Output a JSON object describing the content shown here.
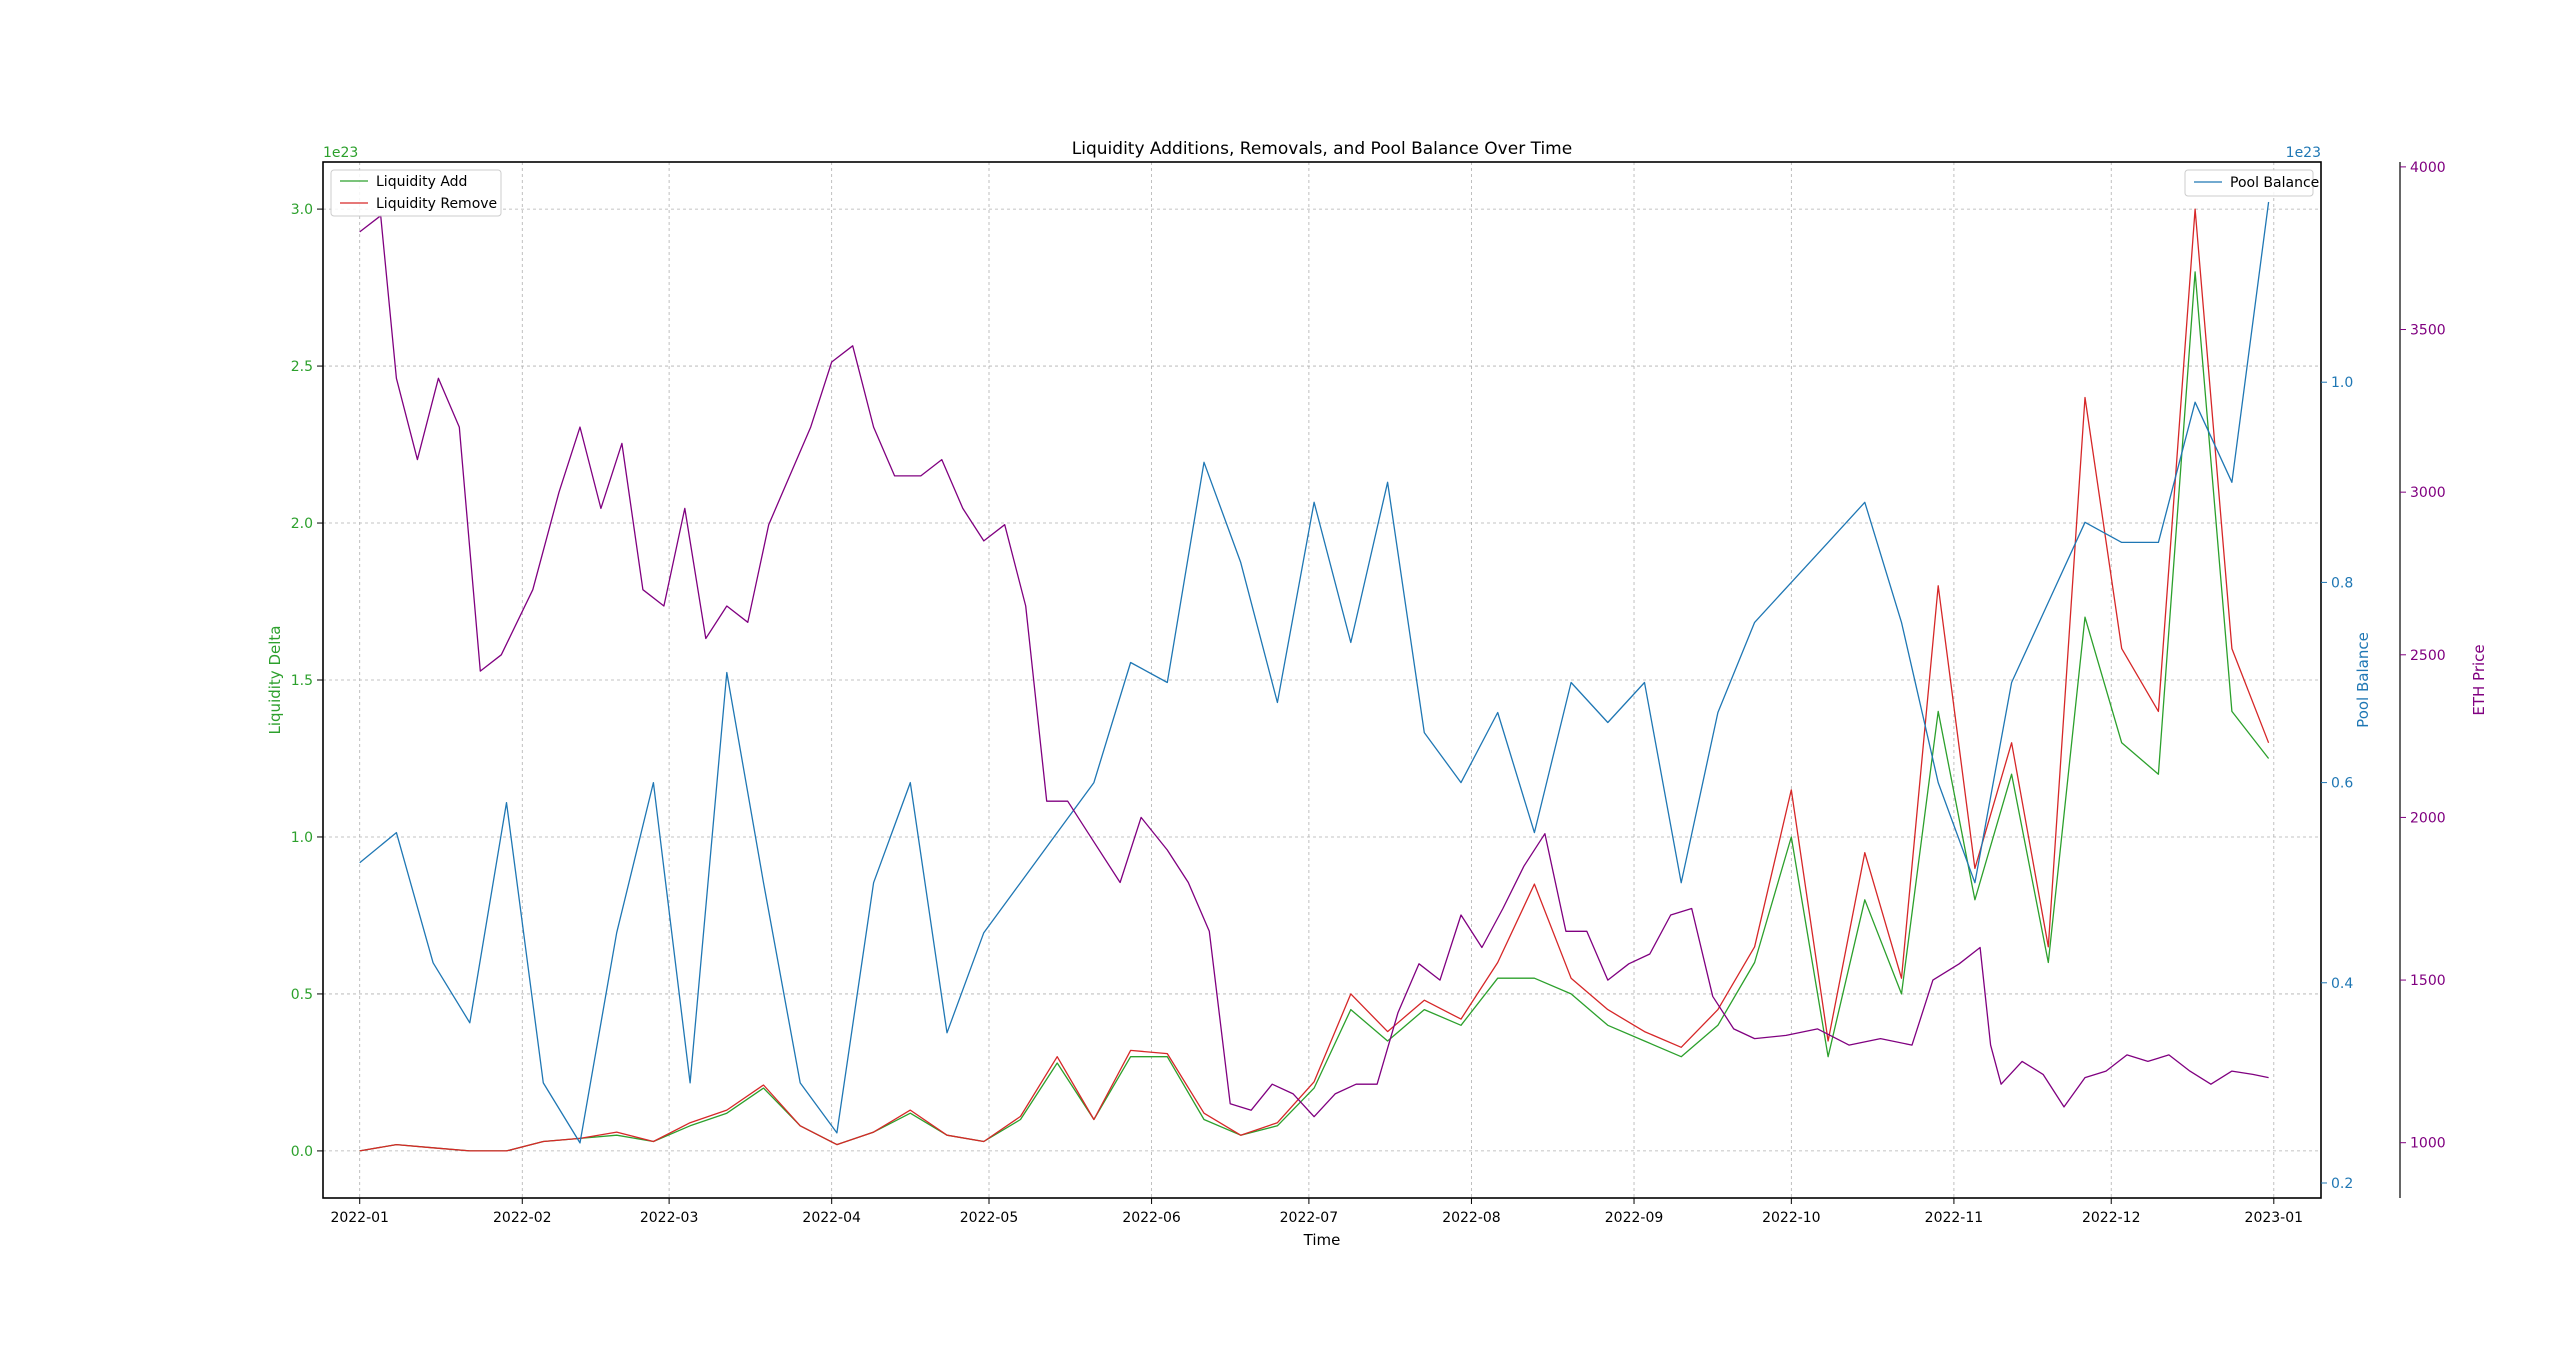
{
  "chart_data": {
    "type": "line",
    "title": "Liquidity Additions, Removals, and Pool Balance Over Time",
    "xlabel": "Time",
    "x_ticks": [
      "2022-01",
      "2022-02",
      "2022-03",
      "2022-04",
      "2022-05",
      "2022-06",
      "2022-07",
      "2022-08",
      "2022-09",
      "2022-10",
      "2022-11",
      "2022-12",
      "2023-01"
    ],
    "grid": true,
    "axes": {
      "left": {
        "label": "Liquidity Delta",
        "offset_text": "1e23",
        "ticks": [
          "0.0",
          "0.5",
          "1.0",
          "1.5",
          "2.0",
          "2.5",
          "3.0"
        ],
        "ylim": [
          -0.15,
          3.15
        ],
        "color": "#2ca02c"
      },
      "right1": {
        "label": "Pool Balance",
        "offset_text": "1e23",
        "ticks": [
          "0.2",
          "0.4",
          "0.6",
          "0.8",
          "1.0"
        ],
        "ylim": [
          0.185,
          1.22
        ],
        "color": "#1f77b4"
      },
      "right2": {
        "label": "ETH Price",
        "ticks": [
          "1000",
          "1500",
          "2000",
          "2500",
          "3000",
          "3500",
          "4000"
        ],
        "ylim": [
          830,
          4015
        ],
        "color": "#800080"
      }
    },
    "legends": {
      "upper-left": [
        "Liquidity Add",
        "Liquidity Remove"
      ],
      "upper-right": [
        "Pool Balance"
      ]
    },
    "series": [
      {
        "name": "Liquidity Add",
        "axis": "left",
        "color": "#2ca02c",
        "points": [
          [
            "2022-01-01",
            0.0
          ],
          [
            "2022-01-08",
            0.02
          ],
          [
            "2022-01-15",
            0.01
          ],
          [
            "2022-01-22",
            0.0
          ],
          [
            "2022-01-29",
            0.0
          ],
          [
            "2022-02-05",
            0.03
          ],
          [
            "2022-02-12",
            0.04
          ],
          [
            "2022-02-19",
            0.05
          ],
          [
            "2022-02-26",
            0.03
          ],
          [
            "2022-03-05",
            0.08
          ],
          [
            "2022-03-12",
            0.12
          ],
          [
            "2022-03-19",
            0.2
          ],
          [
            "2022-03-26",
            0.08
          ],
          [
            "2022-04-02",
            0.02
          ],
          [
            "2022-04-09",
            0.06
          ],
          [
            "2022-04-16",
            0.12
          ],
          [
            "2022-04-23",
            0.05
          ],
          [
            "2022-04-30",
            0.03
          ],
          [
            "2022-05-07",
            0.1
          ],
          [
            "2022-05-14",
            0.28
          ],
          [
            "2022-05-21",
            0.1
          ],
          [
            "2022-05-28",
            0.3
          ],
          [
            "2022-06-04",
            0.3
          ],
          [
            "2022-06-11",
            0.1
          ],
          [
            "2022-06-18",
            0.05
          ],
          [
            "2022-06-25",
            0.08
          ],
          [
            "2022-07-02",
            0.2
          ],
          [
            "2022-07-09",
            0.45
          ],
          [
            "2022-07-16",
            0.35
          ],
          [
            "2022-07-23",
            0.45
          ],
          [
            "2022-07-30",
            0.4
          ],
          [
            "2022-08-06",
            0.55
          ],
          [
            "2022-08-13",
            0.55
          ],
          [
            "2022-08-20",
            0.5
          ],
          [
            "2022-08-27",
            0.4
          ],
          [
            "2022-09-03",
            0.35
          ],
          [
            "2022-09-10",
            0.3
          ],
          [
            "2022-09-17",
            0.4
          ],
          [
            "2022-09-24",
            0.6
          ],
          [
            "2022-10-01",
            1.0
          ],
          [
            "2022-10-08",
            0.3
          ],
          [
            "2022-10-15",
            0.8
          ],
          [
            "2022-10-22",
            0.5
          ],
          [
            "2022-10-29",
            1.4
          ],
          [
            "2022-11-05",
            0.8
          ],
          [
            "2022-11-12",
            1.2
          ],
          [
            "2022-11-19",
            0.6
          ],
          [
            "2022-11-26",
            1.7
          ],
          [
            "2022-12-03",
            1.3
          ],
          [
            "2022-12-10",
            1.2
          ],
          [
            "2022-12-17",
            2.8
          ],
          [
            "2022-12-24",
            1.4
          ],
          [
            "2022-12-31",
            1.25
          ]
        ]
      },
      {
        "name": "Liquidity Remove",
        "axis": "left",
        "color": "#d62728",
        "points": [
          [
            "2022-01-01",
            0.0
          ],
          [
            "2022-01-08",
            0.02
          ],
          [
            "2022-01-15",
            0.01
          ],
          [
            "2022-01-22",
            0.0
          ],
          [
            "2022-01-29",
            0.0
          ],
          [
            "2022-02-05",
            0.03
          ],
          [
            "2022-02-12",
            0.04
          ],
          [
            "2022-02-19",
            0.06
          ],
          [
            "2022-02-26",
            0.03
          ],
          [
            "2022-03-05",
            0.09
          ],
          [
            "2022-03-12",
            0.13
          ],
          [
            "2022-03-19",
            0.21
          ],
          [
            "2022-03-26",
            0.08
          ],
          [
            "2022-04-02",
            0.02
          ],
          [
            "2022-04-09",
            0.06
          ],
          [
            "2022-04-16",
            0.13
          ],
          [
            "2022-04-23",
            0.05
          ],
          [
            "2022-04-30",
            0.03
          ],
          [
            "2022-05-07",
            0.11
          ],
          [
            "2022-05-14",
            0.3
          ],
          [
            "2022-05-21",
            0.1
          ],
          [
            "2022-05-28",
            0.32
          ],
          [
            "2022-06-04",
            0.31
          ],
          [
            "2022-06-11",
            0.12
          ],
          [
            "2022-06-18",
            0.05
          ],
          [
            "2022-06-25",
            0.09
          ],
          [
            "2022-07-02",
            0.22
          ],
          [
            "2022-07-09",
            0.5
          ],
          [
            "2022-07-16",
            0.38
          ],
          [
            "2022-07-23",
            0.48
          ],
          [
            "2022-07-30",
            0.42
          ],
          [
            "2022-08-06",
            0.6
          ],
          [
            "2022-08-13",
            0.85
          ],
          [
            "2022-08-20",
            0.55
          ],
          [
            "2022-08-27",
            0.45
          ],
          [
            "2022-09-03",
            0.38
          ],
          [
            "2022-09-10",
            0.33
          ],
          [
            "2022-09-17",
            0.45
          ],
          [
            "2022-09-24",
            0.65
          ],
          [
            "2022-10-01",
            1.15
          ],
          [
            "2022-10-08",
            0.35
          ],
          [
            "2022-10-15",
            0.95
          ],
          [
            "2022-10-22",
            0.55
          ],
          [
            "2022-10-29",
            1.8
          ],
          [
            "2022-11-05",
            0.9
          ],
          [
            "2022-11-12",
            1.3
          ],
          [
            "2022-11-19",
            0.65
          ],
          [
            "2022-11-26",
            2.4
          ],
          [
            "2022-12-03",
            1.6
          ],
          [
            "2022-12-10",
            1.4
          ],
          [
            "2022-12-17",
            3.0
          ],
          [
            "2022-12-24",
            1.6
          ],
          [
            "2022-12-31",
            1.3
          ]
        ]
      },
      {
        "name": "Pool Balance",
        "axis": "right1",
        "color": "#1f77b4",
        "points": [
          [
            "2022-01-01",
            0.52
          ],
          [
            "2022-01-08",
            0.55
          ],
          [
            "2022-01-15",
            0.42
          ],
          [
            "2022-01-22",
            0.36
          ],
          [
            "2022-01-29",
            0.58
          ],
          [
            "2022-02-05",
            0.3
          ],
          [
            "2022-02-12",
            0.24
          ],
          [
            "2022-02-19",
            0.45
          ],
          [
            "2022-02-26",
            0.6
          ],
          [
            "2022-03-05",
            0.3
          ],
          [
            "2022-03-12",
            0.71
          ],
          [
            "2022-03-19",
            0.5
          ],
          [
            "2022-03-26",
            0.3
          ],
          [
            "2022-04-02",
            0.25
          ],
          [
            "2022-04-09",
            0.5
          ],
          [
            "2022-04-16",
            0.6
          ],
          [
            "2022-04-23",
            0.35
          ],
          [
            "2022-04-30",
            0.45
          ],
          [
            "2022-05-07",
            0.5
          ],
          [
            "2022-05-14",
            0.55
          ],
          [
            "2022-05-21",
            0.6
          ],
          [
            "2022-05-28",
            0.72
          ],
          [
            "2022-06-04",
            0.7
          ],
          [
            "2022-06-11",
            0.92
          ],
          [
            "2022-06-18",
            0.82
          ],
          [
            "2022-06-25",
            0.68
          ],
          [
            "2022-07-02",
            0.88
          ],
          [
            "2022-07-09",
            0.74
          ],
          [
            "2022-07-16",
            0.9
          ],
          [
            "2022-07-23",
            0.65
          ],
          [
            "2022-07-30",
            0.6
          ],
          [
            "2022-08-06",
            0.67
          ],
          [
            "2022-08-13",
            0.55
          ],
          [
            "2022-08-20",
            0.7
          ],
          [
            "2022-08-27",
            0.66
          ],
          [
            "2022-09-03",
            0.7
          ],
          [
            "2022-09-10",
            0.5
          ],
          [
            "2022-09-17",
            0.67
          ],
          [
            "2022-09-24",
            0.76
          ],
          [
            "2022-10-01",
            0.8
          ],
          [
            "2022-10-08",
            0.84
          ],
          [
            "2022-10-15",
            0.88
          ],
          [
            "2022-10-22",
            0.76
          ],
          [
            "2022-10-29",
            0.6
          ],
          [
            "2022-11-05",
            0.5
          ],
          [
            "2022-11-12",
            0.7
          ],
          [
            "2022-11-19",
            0.78
          ],
          [
            "2022-11-26",
            0.86
          ],
          [
            "2022-12-03",
            0.84
          ],
          [
            "2022-12-10",
            0.84
          ],
          [
            "2022-12-17",
            0.98
          ],
          [
            "2022-12-24",
            0.9
          ],
          [
            "2022-12-31",
            1.18
          ]
        ]
      },
      {
        "name": "ETH Price",
        "axis": "right2",
        "color": "#800080",
        "points": [
          [
            "2022-01-01",
            3800
          ],
          [
            "2022-01-05",
            3850
          ],
          [
            "2022-01-08",
            3350
          ],
          [
            "2022-01-12",
            3100
          ],
          [
            "2022-01-16",
            3350
          ],
          [
            "2022-01-20",
            3200
          ],
          [
            "2022-01-24",
            2450
          ],
          [
            "2022-01-28",
            2500
          ],
          [
            "2022-02-03",
            2700
          ],
          [
            "2022-02-08",
            3000
          ],
          [
            "2022-02-12",
            3200
          ],
          [
            "2022-02-16",
            2950
          ],
          [
            "2022-02-20",
            3150
          ],
          [
            "2022-02-24",
            2700
          ],
          [
            "2022-02-28",
            2650
          ],
          [
            "2022-03-04",
            2950
          ],
          [
            "2022-03-08",
            2550
          ],
          [
            "2022-03-12",
            2650
          ],
          [
            "2022-03-16",
            2600
          ],
          [
            "2022-03-20",
            2900
          ],
          [
            "2022-03-24",
            3050
          ],
          [
            "2022-03-28",
            3200
          ],
          [
            "2022-04-01",
            3400
          ],
          [
            "2022-04-05",
            3450
          ],
          [
            "2022-04-09",
            3200
          ],
          [
            "2022-04-13",
            3050
          ],
          [
            "2022-04-18",
            3050
          ],
          [
            "2022-04-22",
            3100
          ],
          [
            "2022-04-26",
            2950
          ],
          [
            "2022-04-30",
            2850
          ],
          [
            "2022-05-04",
            2900
          ],
          [
            "2022-05-08",
            2650
          ],
          [
            "2022-05-12",
            2050
          ],
          [
            "2022-05-16",
            2050
          ],
          [
            "2022-05-20",
            1950
          ],
          [
            "2022-05-26",
            1800
          ],
          [
            "2022-05-30",
            2000
          ],
          [
            "2022-06-04",
            1900
          ],
          [
            "2022-06-08",
            1800
          ],
          [
            "2022-06-12",
            1650
          ],
          [
            "2022-06-16",
            1120
          ],
          [
            "2022-06-20",
            1100
          ],
          [
            "2022-06-24",
            1180
          ],
          [
            "2022-06-28",
            1150
          ],
          [
            "2022-07-02",
            1080
          ],
          [
            "2022-07-06",
            1150
          ],
          [
            "2022-07-10",
            1180
          ],
          [
            "2022-07-14",
            1180
          ],
          [
            "2022-07-18",
            1400
          ],
          [
            "2022-07-22",
            1550
          ],
          [
            "2022-07-26",
            1500
          ],
          [
            "2022-07-30",
            1700
          ],
          [
            "2022-08-03",
            1600
          ],
          [
            "2022-08-07",
            1720
          ],
          [
            "2022-08-11",
            1850
          ],
          [
            "2022-08-15",
            1950
          ],
          [
            "2022-08-19",
            1650
          ],
          [
            "2022-08-23",
            1650
          ],
          [
            "2022-08-27",
            1500
          ],
          [
            "2022-08-31",
            1550
          ],
          [
            "2022-09-04",
            1580
          ],
          [
            "2022-09-08",
            1700
          ],
          [
            "2022-09-12",
            1720
          ],
          [
            "2022-09-16",
            1450
          ],
          [
            "2022-09-20",
            1350
          ],
          [
            "2022-09-24",
            1320
          ],
          [
            "2022-09-30",
            1330
          ],
          [
            "2022-10-06",
            1350
          ],
          [
            "2022-10-12",
            1300
          ],
          [
            "2022-10-18",
            1320
          ],
          [
            "2022-10-24",
            1300
          ],
          [
            "2022-10-28",
            1500
          ],
          [
            "2022-11-02",
            1550
          ],
          [
            "2022-11-06",
            1600
          ],
          [
            "2022-11-08",
            1300
          ],
          [
            "2022-11-10",
            1180
          ],
          [
            "2022-11-14",
            1250
          ],
          [
            "2022-11-18",
            1210
          ],
          [
            "2022-11-22",
            1110
          ],
          [
            "2022-11-26",
            1200
          ],
          [
            "2022-11-30",
            1220
          ],
          [
            "2022-12-04",
            1270
          ],
          [
            "2022-12-08",
            1250
          ],
          [
            "2022-12-12",
            1270
          ],
          [
            "2022-12-16",
            1220
          ],
          [
            "2022-12-20",
            1180
          ],
          [
            "2022-12-24",
            1220
          ],
          [
            "2022-12-28",
            1210
          ],
          [
            "2022-12-31",
            1200
          ]
        ]
      }
    ]
  }
}
